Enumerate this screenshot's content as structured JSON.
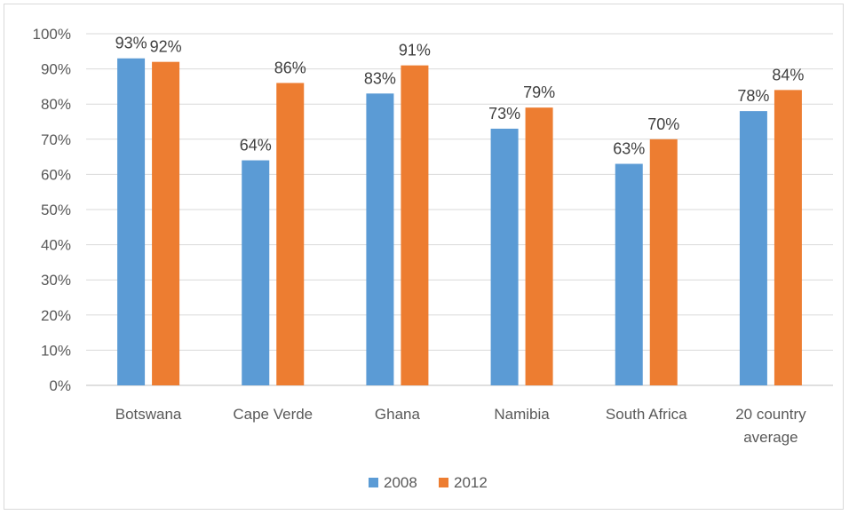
{
  "chart_data": {
    "type": "bar",
    "title": "",
    "xlabel": "",
    "ylabel": "",
    "categories": [
      [
        "Botswana"
      ],
      [
        "Cape Verde"
      ],
      [
        "Ghana"
      ],
      [
        "Namibia"
      ],
      [
        "South Africa"
      ],
      [
        "20 country",
        "average"
      ]
    ],
    "series": [
      {
        "name": "2008",
        "color": "#5b9bd5",
        "values": [
          93,
          64,
          83,
          73,
          63,
          78
        ]
      },
      {
        "name": "2012",
        "color": "#ed7d31",
        "values": [
          92,
          86,
          91,
          79,
          70,
          84
        ]
      }
    ],
    "ylim": [
      0,
      100
    ],
    "yticks": [
      0,
      10,
      20,
      30,
      40,
      50,
      60,
      70,
      80,
      90,
      100
    ],
    "value_format": "percent",
    "grid": true,
    "legend_position": "bottom"
  }
}
